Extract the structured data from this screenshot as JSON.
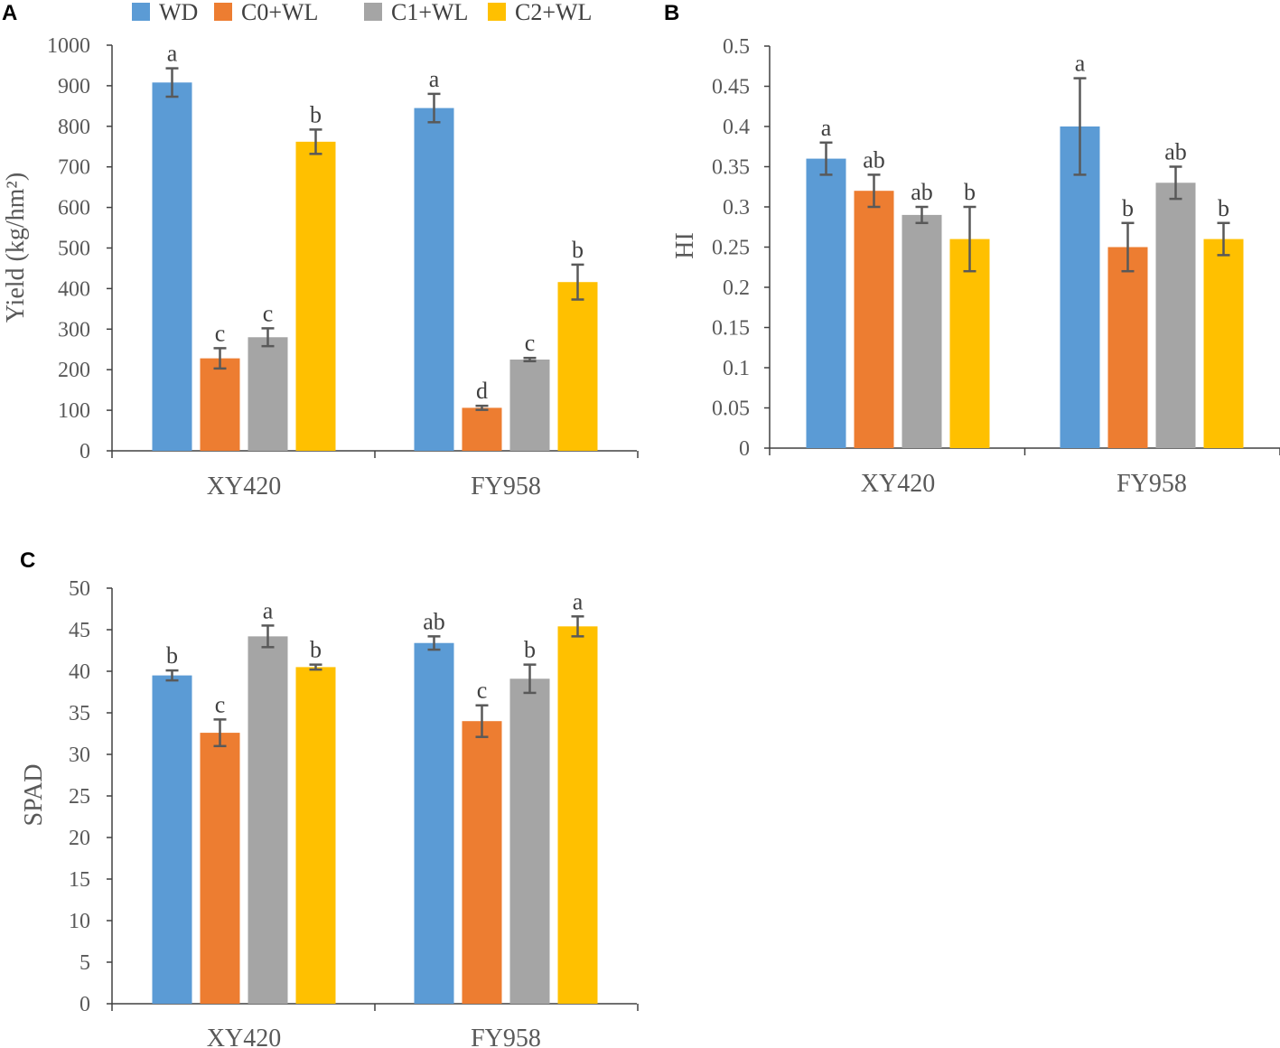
{
  "legend": {
    "items": [
      {
        "name": "WD",
        "color": "#5B9BD5"
      },
      {
        "name": "C0+WL",
        "color": "#ED7D31"
      },
      {
        "name": "C1+WL",
        "color": "#A5A5A5"
      },
      {
        "name": "C2+WL",
        "color": "#FFC000"
      }
    ]
  },
  "chart_data": [
    {
      "panel": "A",
      "type": "bar",
      "ylabel": "Yield (kg/hm²)",
      "categories": [
        "XY420",
        "FY958"
      ],
      "ylim": [
        0,
        1000
      ],
      "yticks": [
        0,
        100,
        200,
        300,
        400,
        500,
        600,
        700,
        800,
        900,
        1000
      ],
      "ytick_labels": [
        "0",
        "100",
        "200",
        "300",
        "400",
        "500",
        "600",
        "700",
        "800",
        "900",
        "1000"
      ],
      "series": [
        {
          "name": "WD",
          "values": [
            908,
            845
          ],
          "errors": [
            35,
            35
          ],
          "letters": [
            "a",
            "a"
          ]
        },
        {
          "name": "C0+WL",
          "values": [
            228,
            106
          ],
          "errors": [
            25,
            5
          ],
          "letters": [
            "c",
            "d"
          ]
        },
        {
          "name": "C1+WL",
          "values": [
            280,
            225
          ],
          "errors": [
            22,
            4
          ],
          "letters": [
            "c",
            "c"
          ]
        },
        {
          "name": "C2+WL",
          "values": [
            762,
            416
          ],
          "errors": [
            30,
            43
          ],
          "letters": [
            "b",
            "b"
          ]
        }
      ]
    },
    {
      "panel": "B",
      "type": "bar",
      "ylabel": "HI",
      "categories": [
        "XY420",
        "FY958"
      ],
      "ylim": [
        0,
        0.5
      ],
      "yticks": [
        0,
        0.05,
        0.1,
        0.15,
        0.2,
        0.25,
        0.3,
        0.35,
        0.4,
        0.45,
        0.5
      ],
      "ytick_labels": [
        "0",
        "0.05",
        "0.1",
        "0.15",
        "0.2",
        "0.25",
        "0.3",
        "0.35",
        "0.4",
        "0.45",
        "0.5"
      ],
      "series": [
        {
          "name": "WD",
          "values": [
            0.36,
            0.4
          ],
          "errors": [
            0.02,
            0.06
          ],
          "letters": [
            "a",
            "a"
          ]
        },
        {
          "name": "C0+WL",
          "values": [
            0.32,
            0.25
          ],
          "errors": [
            0.02,
            0.03
          ],
          "letters": [
            "ab",
            "b"
          ]
        },
        {
          "name": "C1+WL",
          "values": [
            0.29,
            0.33
          ],
          "errors": [
            0.01,
            0.02
          ],
          "letters": [
            "ab",
            "ab"
          ]
        },
        {
          "name": "C2+WL",
          "values": [
            0.26,
            0.26
          ],
          "errors": [
            0.04,
            0.02
          ],
          "letters": [
            "b",
            "b"
          ]
        }
      ]
    },
    {
      "panel": "C",
      "type": "bar",
      "ylabel": "SPAD",
      "categories": [
        "XY420",
        "FY958"
      ],
      "ylim": [
        0,
        50
      ],
      "yticks": [
        0,
        5,
        10,
        15,
        20,
        25,
        30,
        35,
        40,
        45,
        50
      ],
      "ytick_labels": [
        "0",
        "5",
        "10",
        "15",
        "20",
        "25",
        "30",
        "35",
        "40",
        "45",
        "50"
      ],
      "series": [
        {
          "name": "WD",
          "values": [
            39.5,
            43.4
          ],
          "errors": [
            0.6,
            0.8
          ],
          "letters": [
            "b",
            "ab"
          ]
        },
        {
          "name": "C0+WL",
          "values": [
            32.6,
            34.0
          ],
          "errors": [
            1.6,
            1.9
          ],
          "letters": [
            "c",
            "c"
          ]
        },
        {
          "name": "C1+WL",
          "values": [
            44.2,
            39.1
          ],
          "errors": [
            1.3,
            1.7
          ],
          "letters": [
            "a",
            "b"
          ]
        },
        {
          "name": "C2+WL",
          "values": [
            40.5,
            45.4
          ],
          "errors": [
            0.3,
            1.2
          ],
          "letters": [
            "b",
            "a"
          ]
        }
      ]
    }
  ]
}
